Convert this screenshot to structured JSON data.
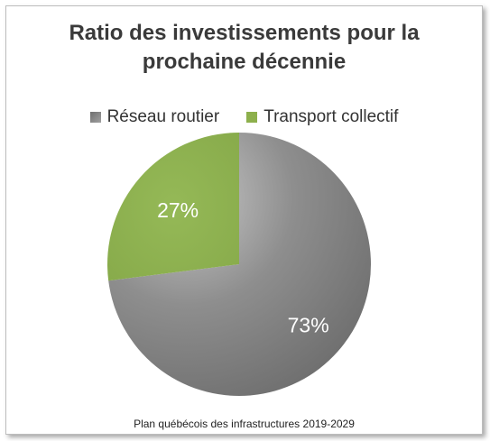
{
  "chart_data": {
    "type": "pie",
    "title_line1": "Ratio des investissements pour la",
    "title_line2": "prochaine décennie",
    "categories": [
      "Réseau routier",
      "Transport collectif"
    ],
    "values": [
      73,
      27
    ],
    "labels": [
      "73%",
      "27%"
    ],
    "colors": [
      "#858585",
      "#8db04c"
    ],
    "legend_position": "top",
    "source": "Plan québécois des infrastructures 2019-2029"
  }
}
